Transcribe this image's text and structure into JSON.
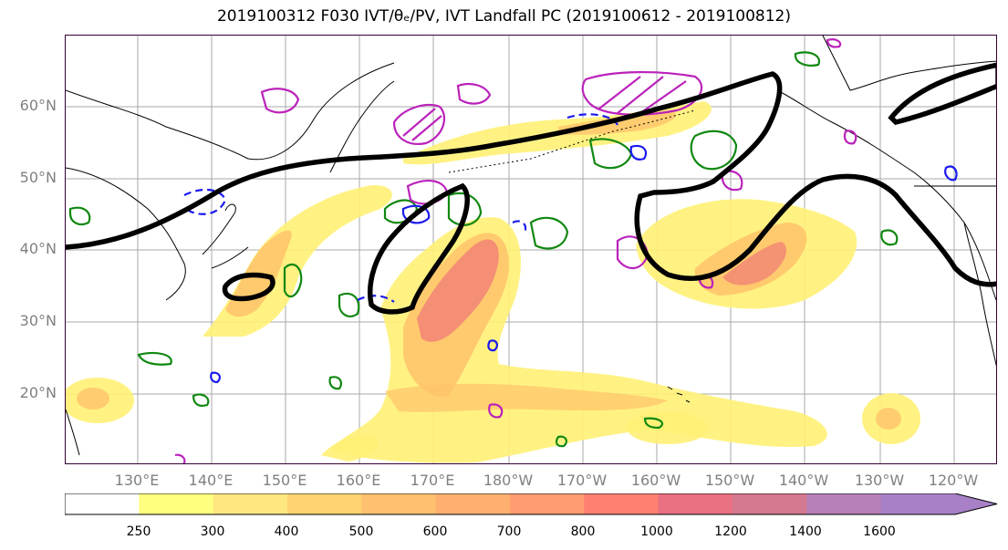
{
  "title": "2019100312 F030 IVT/θₑ/PV, IVT Landfall PC (2019100612 - 2019100812)",
  "lat_labels": [
    "60°N",
    "50°N",
    "40°N",
    "30°N",
    "20°N"
  ],
  "lon_labels": [
    "130°E",
    "140°E",
    "150°E",
    "160°E",
    "170°E",
    "180°W",
    "170°W",
    "160°W",
    "150°W",
    "140°W",
    "130°W",
    "120°W"
  ],
  "colorbar": {
    "ticks": [
      "250",
      "300",
      "400",
      "500",
      "600",
      "700",
      "800",
      "1000",
      "1200",
      "1400",
      "1600"
    ],
    "colors": [
      "#ffffff",
      "#ffff80",
      "#ffe880",
      "#ffd470",
      "#ffc070",
      "#ffb070",
      "#ff9c70",
      "#ff8070",
      "#e87080",
      "#d47890",
      "#b880b8",
      "#a880c8"
    ]
  },
  "colors": {
    "ivt_low": "#fff176",
    "ivt_mid": "#ffc36a",
    "ivt_high": "#f07a78",
    "ivt_core": "#e0687c",
    "pc_contour": "#000000",
    "green_contour": "#118811",
    "blue_contour": "#1a1aee",
    "magenta_contour": "#bb22bb",
    "coast": "#000000",
    "grid": "#aaaaaa"
  }
}
